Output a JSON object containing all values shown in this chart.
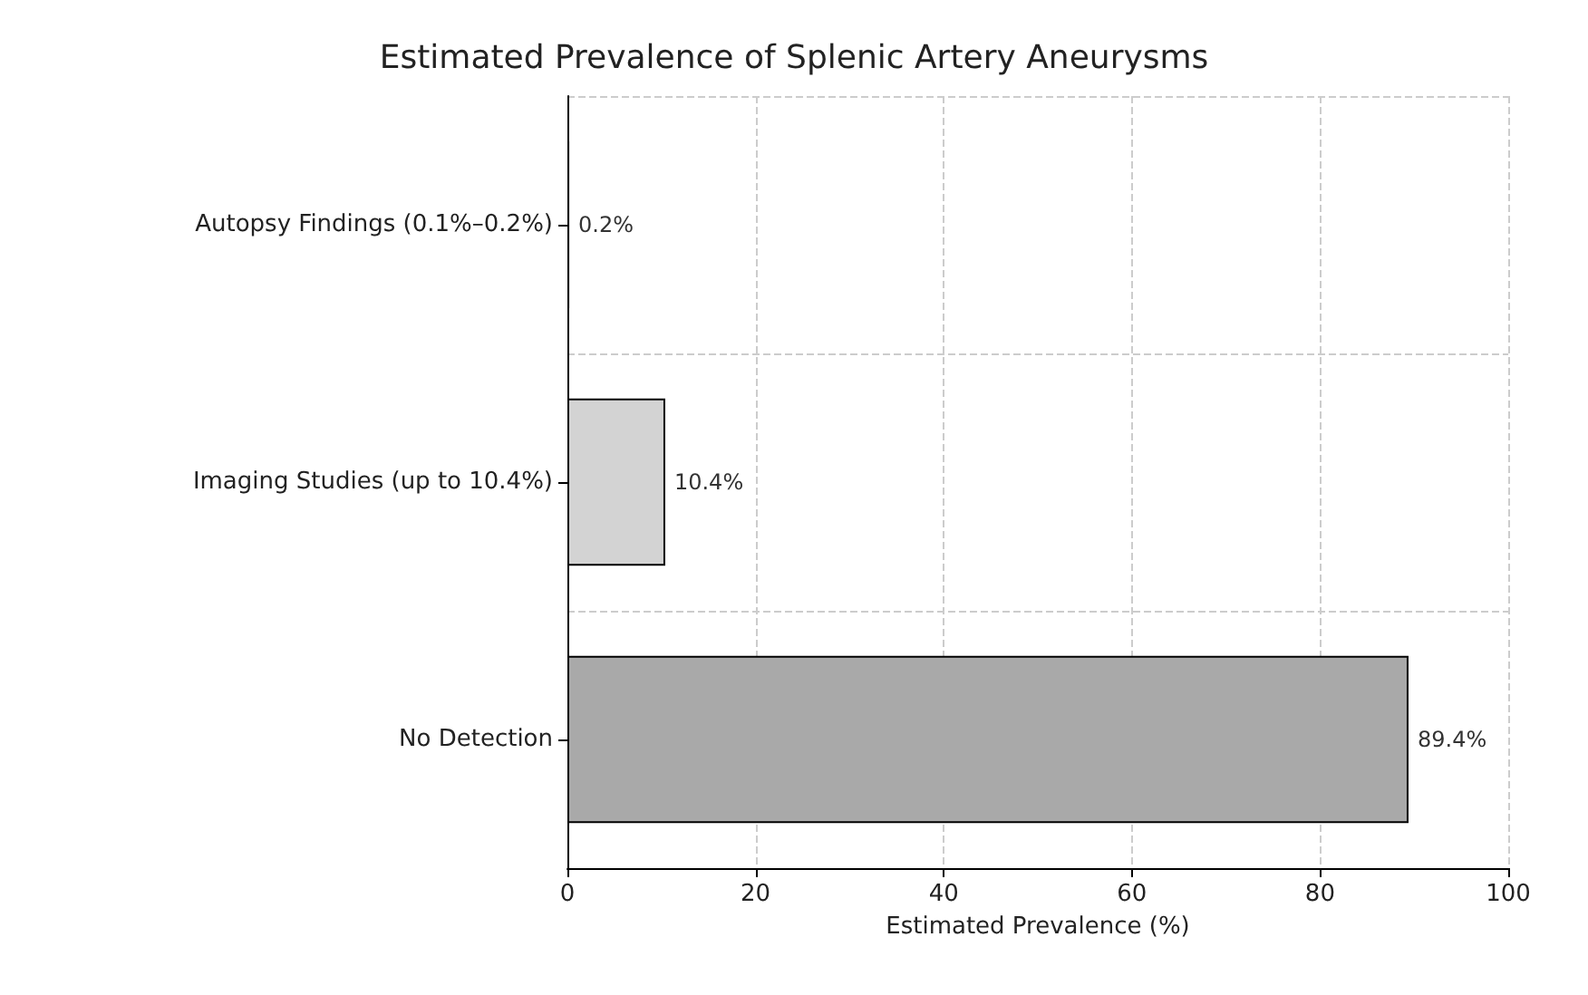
{
  "chart_data": {
    "type": "bar",
    "orientation": "horizontal",
    "title": "Estimated Prevalence of Splenic Artery Aneurysms",
    "xlabel": "Estimated Prevalence (%)",
    "categories": [
      "Autopsy Findings (0.1%–0.2%)",
      "Imaging Studies (up to 10.4%)",
      "No Detection"
    ],
    "values": [
      0.2,
      10.4,
      89.4
    ],
    "colors": [
      "#333333",
      "#d3d3d3",
      "#a9a9a9"
    ],
    "value_labels": [
      "0.2%",
      "10.4%",
      "89.4%"
    ],
    "xlim": [
      0,
      100
    ],
    "xticks": [
      0,
      20,
      40,
      60,
      80,
      100
    ],
    "grid": true
  }
}
